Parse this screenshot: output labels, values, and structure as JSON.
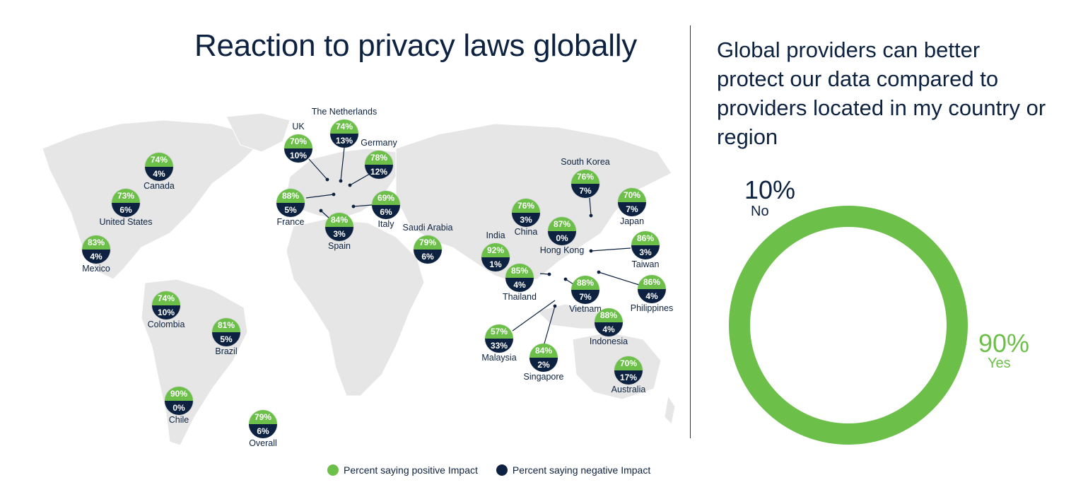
{
  "title": "Reaction to privacy laws globally",
  "colors": {
    "positive": "#6cc04a",
    "negative": "#0d2240"
  },
  "countries": [
    {
      "name": "Canada",
      "pos": "74%",
      "neg": "4%"
    },
    {
      "name": "United States",
      "pos": "73%",
      "neg": "6%"
    },
    {
      "name": "Mexico",
      "pos": "83%",
      "neg": "4%"
    },
    {
      "name": "Colombia",
      "pos": "74%",
      "neg": "10%"
    },
    {
      "name": "Brazil",
      "pos": "81%",
      "neg": "5%"
    },
    {
      "name": "Chile",
      "pos": "90%",
      "neg": "0%"
    },
    {
      "name": "Overall",
      "pos": "79%",
      "neg": "6%"
    },
    {
      "name": "UK",
      "pos": "70%",
      "neg": "10%"
    },
    {
      "name": "The Netherlands",
      "pos": "74%",
      "neg": "13%"
    },
    {
      "name": "Germany",
      "pos": "78%",
      "neg": "12%"
    },
    {
      "name": "France",
      "pos": "88%",
      "neg": "5%"
    },
    {
      "name": "Italy",
      "pos": "69%",
      "neg": "6%"
    },
    {
      "name": "Spain",
      "pos": "84%",
      "neg": "3%"
    },
    {
      "name": "Saudi Arabia",
      "pos": "79%",
      "neg": "6%"
    },
    {
      "name": "India",
      "pos": "92%",
      "neg": "1%"
    },
    {
      "name": "China",
      "pos": "76%",
      "neg": "3%"
    },
    {
      "name": "Hong Kong",
      "pos": "87%",
      "neg": "0%"
    },
    {
      "name": "South Korea",
      "pos": "76%",
      "neg": "7%"
    },
    {
      "name": "Japan",
      "pos": "70%",
      "neg": "7%"
    },
    {
      "name": "Taiwan",
      "pos": "86%",
      "neg": "3%"
    },
    {
      "name": "Thailand",
      "pos": "85%",
      "neg": "4%"
    },
    {
      "name": "Vietnam",
      "pos": "88%",
      "neg": "7%"
    },
    {
      "name": "Philippines",
      "pos": "86%",
      "neg": "4%"
    },
    {
      "name": "Indonesia",
      "pos": "88%",
      "neg": "4%"
    },
    {
      "name": "Malaysia",
      "pos": "57%",
      "neg": "33%"
    },
    {
      "name": "Singapore",
      "pos": "84%",
      "neg": "2%"
    },
    {
      "name": "Australia",
      "pos": "70%",
      "neg": "17%"
    }
  ],
  "legend": {
    "positive": "Percent saying positive Impact",
    "negative": "Percent saying negative Impact"
  },
  "right": {
    "title": "Global providers can better protect our data compared to providers located in my country or region",
    "no_pct": "10%",
    "no_label": "No",
    "yes_pct": "90%",
    "yes_label": "Yes",
    "yes_value": 90,
    "no_value": 10
  }
}
